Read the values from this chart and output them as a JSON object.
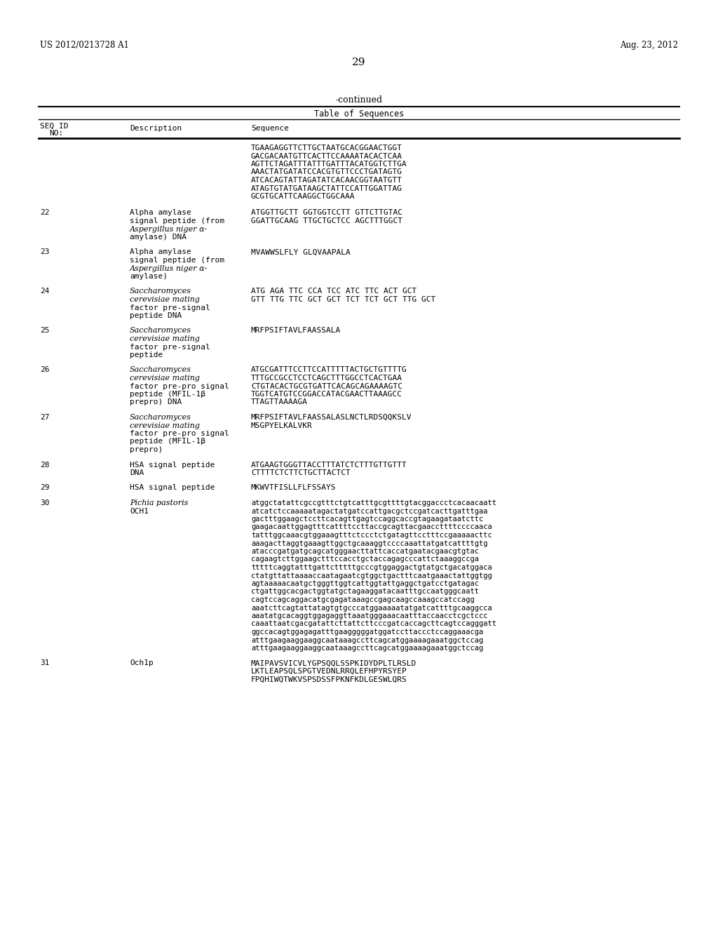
{
  "page_number": "29",
  "patent_number": "US 2012/0213728 A1",
  "patent_date": "Aug. 23, 2012",
  "continued_label": "-continued",
  "table_title": "Table of Sequences",
  "background_color": "#ffffff",
  "entries": [
    {
      "seq_id": "",
      "description": "",
      "sequence": "TGAAGAGGTTCTTGCTAATGCACGGAACTGGT\nGACGACAATGTTCACTTCCAAAATACACTCAA\nAGTTCTAGATTTATTTGATTTACATGGTCTTGA\nAAACTATGATATCCACGTGTTCCCTGATAGTG\nATCACAGTATTAGATATCACAACGGTAATGTT\nATAGTGTATGATAAGCTATTCCATTGGATTAG\nGCGTGCATTCAAGGCTGGCAAA",
      "desc_italic": []
    },
    {
      "seq_id": "22",
      "description": [
        "Alpha amylase",
        "signal peptide (from",
        "Aspergillus niger α-",
        "amylase) DNA"
      ],
      "desc_italic": [
        false,
        false,
        true,
        false
      ],
      "sequence": "ATGGTTGCTT GGTGGTCCTT GTTCTTGTAC\nGGATTGCAAG TTGCTGCTCC AGCTTTGGCT"
    },
    {
      "seq_id": "23",
      "description": [
        "Alpha amylase",
        "signal peptide (from",
        "Aspergillus niger α-",
        "amylase)"
      ],
      "desc_italic": [
        false,
        false,
        true,
        false
      ],
      "sequence": "MVAWWSLFLY GLQVAAPALA"
    },
    {
      "seq_id": "24",
      "description": [
        "Saccharomyces",
        "cerevisiae mating",
        "factor pre-signal",
        "peptide DNA"
      ],
      "desc_italic": [
        true,
        true,
        false,
        false
      ],
      "sequence": "ATG AGA TTC CCA TCC ATC TTC ACT GCT\nGTT TTG TTC GCT GCT TCT TCT GCT TTG GCT"
    },
    {
      "seq_id": "25",
      "description": [
        "Saccharomyces",
        "cerevisiae mating",
        "factor pre-signal",
        "peptide"
      ],
      "desc_italic": [
        true,
        true,
        false,
        false
      ],
      "sequence": "MRFPSIFTAVLFAASSALA"
    },
    {
      "seq_id": "26",
      "description": [
        "Saccharomyces",
        "cerevisiae mating",
        "factor pre-pro signal",
        "peptide (MFIL-1β",
        "prepro) DNA"
      ],
      "desc_italic": [
        true,
        true,
        false,
        false,
        false
      ],
      "sequence": "ATGCGATTTCCTTCCATTTTTACTGCTGTTTTG\nTTTGCCGCCTCCTCAGCTTTGGCCTCACTGAA\nCTGTACACTGCGTGATTCACAGCAGAAAAGTC\nTGGTCATGTCCGGACCATACGAACTTAAAGCC\nTTAGTTAAAAGA"
    },
    {
      "seq_id": "27",
      "description": [
        "Saccharomyces",
        "cerevisiae mating",
        "factor pre-pro signal",
        "peptide (MFIL-1β",
        "prepro)"
      ],
      "desc_italic": [
        true,
        true,
        false,
        false,
        false
      ],
      "sequence": "MRFPSIFTAVLFAASSALASLNCTLRDSQQKSLV\nMSGPYELKALVKR"
    },
    {
      "seq_id": "28",
      "description": [
        "HSA signal peptide",
        "DNA"
      ],
      "desc_italic": [
        false,
        false
      ],
      "sequence": "ATGAAGTGGGTTACCTTTATCTCTTTGTTGTTT\nCTTTTCTCTTCTGCTTACTCT"
    },
    {
      "seq_id": "29",
      "description": [
        "HSA signal peptide"
      ],
      "desc_italic": [
        false
      ],
      "sequence": "MKWVTFISLLFLFSSAYS"
    },
    {
      "seq_id": "30",
      "description": [
        "Pichia pastoris",
        "OCH1"
      ],
      "desc_italic": [
        true,
        false
      ],
      "sequence": "atggctatattcgccgtttctgtcatttgcgttttgtacggaccctcacaacaatt\natcatctccaaaaatagactatgatccattgacgctccgatcacttgatttgaa\ngactttggaagctccttcacagttgagtccaggcaccgtagaagataatcttc\ngaagacaattggagtttcattttccttaccgcagttacgaaccttttccccaaca\ntatttggcaaacgtggaaagtttctccctctgatagttcctttccgaaaaacttc\naaagacttaggtgaaagttggctgcaaaggtccccaaattatgatcattttgtg\natacccgatgatgcagcatgggaacttattcaccatgaatacgaacgtgtac\ncagaagtcttggaagctttccacctgctaccagagcccattctaaaggccga\ntttttcaggtatttgattctttttgcccgtggaggactgtatgctgacatggaca\nctatgttattaaaaccaatagaatcgtggctgactttcaatgaaactattggtgg\nagtaaaaacaatgctgggttggtcattggtattgaggctgatcctgatagac\nctgattggcacgactggtatgctagaaggatacaatttgccaatgggcaatt\ncagtccagcaggacatgcgagataaagccgagcaagccaaagccatccagg\naaatcttcagtattatagtgtgcccatggaaaaatatgatcattttgcaaggcca\naaatatgcacaggtggagaggttaaatgggaaacaatttaccaacctcgctccc\ncaaattaatcgacgatattcttattcttcccgatcaccagcttcagtccagggatt\nggccacagtggagagatttgaagggggatggatccttaccctccaggaaacga\natttgaagaaggaaggcaataaagccttcagcatggaaaagaaatggctccag\natttgaagaaggaaggcaataaagccttcagcatggaaaagaaatggctccag"
    },
    {
      "seq_id": "31",
      "description": [
        "Och1p"
      ],
      "desc_italic": [
        false
      ],
      "sequence": "MAIPAVSVICVLYGPSQQLSSPKIDYDPLTLRSLD\nLKTLEAPSQLSPGTVEDNLRRQLEFHPYRSYEP\nFPQHIWQTWKVSPSDSSFPKNFKDLGESWLQRS"
    }
  ]
}
